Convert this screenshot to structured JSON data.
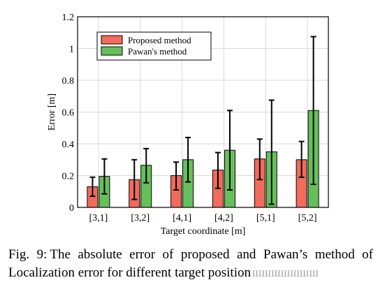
{
  "chart_data": {
    "type": "bar",
    "title": "",
    "xlabel": "Target coordinate [m]",
    "ylabel": "Error [m]",
    "ylim": [
      0,
      1.2
    ],
    "yticks": [
      "0",
      "0.2",
      "0.4",
      "0.6",
      "0.8",
      "1",
      "1.2"
    ],
    "categories": [
      "[3,1]",
      "[3,2]",
      "[4,1]",
      "[4,2]",
      "[5,1]",
      "[5,2]"
    ],
    "grid": true,
    "legend_position": "top-left",
    "series": [
      {
        "name": "Proposed method",
        "color": "#f26b5b",
        "values": [
          0.13,
          0.175,
          0.2,
          0.235,
          0.305,
          0.3
        ],
        "err_low": [
          0.07,
          0.05,
          0.11,
          0.12,
          0.175,
          0.19
        ],
        "err_high": [
          0.19,
          0.3,
          0.285,
          0.345,
          0.43,
          0.415
        ]
      },
      {
        "name": "Pawan's method",
        "color": "#66c05a",
        "values": [
          0.195,
          0.265,
          0.3,
          0.36,
          0.35,
          0.61
        ],
        "err_low": [
          0.085,
          0.155,
          0.16,
          0.11,
          0.02,
          0.145
        ],
        "err_high": [
          0.305,
          0.37,
          0.44,
          0.61,
          0.675,
          1.075
        ]
      }
    ]
  },
  "caption": {
    "label": "Fig. 9:",
    "text": "The absolute error of proposed and Pawan’s method of Localization error for different target position",
    "watermark": "ШШШШШШШ"
  }
}
